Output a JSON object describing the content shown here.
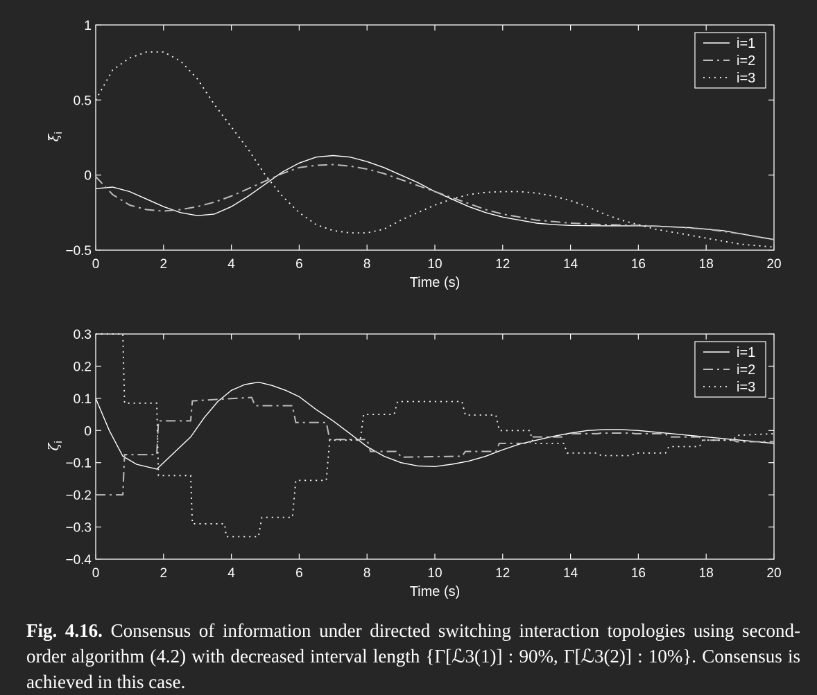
{
  "chart_data": [
    {
      "type": "line",
      "ylabel": "ξ_i",
      "ylabel_main": "ξ",
      "ylabel_sub": "i",
      "xlabel": "Time (s)",
      "xlim": [
        0,
        20
      ],
      "ylim": [
        -0.5,
        1
      ],
      "xticks": [
        "0",
        "2",
        "4",
        "6",
        "8",
        "10",
        "12",
        "14",
        "16",
        "18",
        "20"
      ],
      "yticks": [
        "−0.5",
        "0",
        "0.5",
        "1"
      ],
      "ytick_values": [
        -0.5,
        0,
        0.5,
        1
      ],
      "legend": "top-right",
      "series": [
        {
          "name": "i=1",
          "style": "solid",
          "x": [
            0,
            0.5,
            1,
            1.5,
            2,
            2.5,
            3,
            3.5,
            4,
            4.5,
            5,
            5.5,
            6,
            6.5,
            7,
            7.5,
            8,
            8.5,
            9,
            9.5,
            10,
            10.5,
            11,
            11.5,
            12,
            12.5,
            13,
            13.5,
            14,
            14.5,
            15,
            15.5,
            16,
            16.5,
            17,
            17.5,
            18,
            18.5,
            19,
            19.5,
            20
          ],
          "y": [
            -0.09,
            -0.08,
            -0.11,
            -0.16,
            -0.21,
            -0.25,
            -0.27,
            -0.26,
            -0.21,
            -0.14,
            -0.06,
            0.02,
            0.08,
            0.12,
            0.13,
            0.12,
            0.09,
            0.05,
            0.0,
            -0.05,
            -0.11,
            -0.16,
            -0.21,
            -0.25,
            -0.28,
            -0.3,
            -0.32,
            -0.33,
            -0.335,
            -0.337,
            -0.338,
            -0.338,
            -0.338,
            -0.34,
            -0.345,
            -0.35,
            -0.36,
            -0.37,
            -0.39,
            -0.41,
            -0.43
          ]
        },
        {
          "name": "i=2",
          "style": "dashdot",
          "x": [
            0,
            0.5,
            1,
            1.5,
            2,
            2.5,
            3,
            3.5,
            4,
            4.5,
            5,
            5.5,
            6,
            6.5,
            7,
            7.5,
            8,
            8.5,
            9,
            9.5,
            10,
            10.5,
            11,
            11.5,
            12,
            12.5,
            13,
            13.5,
            14,
            14.5,
            15,
            15.5,
            16,
            16.5,
            17,
            17.5,
            18,
            18.5,
            19,
            19.5,
            20
          ],
          "y": [
            -0.01,
            -0.13,
            -0.2,
            -0.23,
            -0.24,
            -0.23,
            -0.21,
            -0.18,
            -0.14,
            -0.09,
            -0.04,
            0.01,
            0.05,
            0.065,
            0.07,
            0.06,
            0.04,
            0.01,
            -0.03,
            -0.07,
            -0.11,
            -0.15,
            -0.19,
            -0.23,
            -0.26,
            -0.28,
            -0.3,
            -0.31,
            -0.32,
            -0.325,
            -0.33,
            -0.333,
            -0.335,
            -0.34,
            -0.345,
            -0.352,
            -0.36,
            -0.375,
            -0.39,
            -0.41,
            -0.43
          ]
        },
        {
          "name": "i=3",
          "style": "dotted",
          "x": [
            0,
            0.5,
            1,
            1.5,
            2,
            2.5,
            3,
            3.5,
            4,
            4.5,
            5,
            5.5,
            6,
            6.5,
            7,
            7.5,
            8,
            8.5,
            9,
            9.5,
            10,
            10.5,
            11,
            11.5,
            12,
            12.5,
            13,
            13.5,
            14,
            14.5,
            15,
            15.5,
            16,
            16.5,
            17,
            17.5,
            18,
            18.5,
            19,
            19.5,
            20
          ],
          "y": [
            0.5,
            0.7,
            0.78,
            0.82,
            0.82,
            0.76,
            0.64,
            0.47,
            0.32,
            0.17,
            0.0,
            -0.14,
            -0.25,
            -0.33,
            -0.37,
            -0.385,
            -0.385,
            -0.36,
            -0.3,
            -0.25,
            -0.2,
            -0.16,
            -0.13,
            -0.115,
            -0.11,
            -0.11,
            -0.12,
            -0.14,
            -0.17,
            -0.21,
            -0.26,
            -0.3,
            -0.33,
            -0.36,
            -0.38,
            -0.4,
            -0.42,
            -0.44,
            -0.46,
            -0.47,
            -0.48
          ]
        }
      ]
    },
    {
      "type": "line",
      "ylabel": "ζ_i",
      "ylabel_main": "ζ",
      "ylabel_sub": "i",
      "xlabel": "Time (s)",
      "xlim": [
        0,
        20
      ],
      "ylim": [
        -0.4,
        0.3
      ],
      "xticks": [
        "0",
        "2",
        "4",
        "6",
        "8",
        "10",
        "12",
        "14",
        "16",
        "18",
        "20"
      ],
      "yticks": [
        "−0.4",
        "−0.3",
        "−0.2",
        "−0.1",
        "0",
        "0.1",
        "0.2",
        "0.3"
      ],
      "ytick_values": [
        -0.4,
        -0.3,
        -0.2,
        -0.1,
        0,
        0.1,
        0.2,
        0.3
      ],
      "legend": "top-right",
      "series": [
        {
          "name": "i=1",
          "style": "solid",
          "x": [
            0,
            0.4,
            0.8,
            1.2,
            1.8,
            2.4,
            2.8,
            3.2,
            3.6,
            4,
            4.4,
            4.8,
            5.2,
            5.6,
            6,
            6.5,
            7,
            7.5,
            8,
            8.5,
            9,
            9.5,
            10,
            10.5,
            11,
            11.5,
            12,
            12.5,
            13,
            13.5,
            14,
            14.5,
            15,
            15.5,
            16,
            16.5,
            17,
            17.5,
            18,
            18.5,
            19,
            19.5,
            20
          ],
          "y": [
            0.1,
            0.0,
            -0.08,
            -0.105,
            -0.12,
            -0.06,
            -0.02,
            0.04,
            0.09,
            0.125,
            0.143,
            0.15,
            0.14,
            0.125,
            0.105,
            0.065,
            0.03,
            -0.01,
            -0.05,
            -0.08,
            -0.1,
            -0.11,
            -0.112,
            -0.105,
            -0.095,
            -0.08,
            -0.06,
            -0.042,
            -0.03,
            -0.018,
            -0.008,
            0.0,
            0.003,
            0.003,
            0.0,
            -0.005,
            -0.01,
            -0.015,
            -0.02,
            -0.025,
            -0.03,
            -0.035,
            -0.04
          ]
        },
        {
          "name": "i=2",
          "style": "dashdot",
          "x": [
            0,
            0.8,
            0.85,
            1.8,
            1.85,
            2.8,
            2.85,
            4.6,
            4.7,
            5.8,
            5.9,
            6.8,
            6.9,
            8,
            8.1,
            8.9,
            9,
            10.8,
            10.9,
            11.8,
            11.9,
            12.8,
            12.9,
            13.8,
            13.9,
            14.8,
            14.9,
            15.8,
            15.9,
            16.8,
            16.9,
            17.8,
            17.9,
            18.8,
            18.9,
            20
          ],
          "y": [
            -0.2,
            -0.2,
            -0.075,
            -0.075,
            0.03,
            0.03,
            0.092,
            0.103,
            0.077,
            0.077,
            0.025,
            0.025,
            -0.028,
            -0.028,
            -0.065,
            -0.065,
            -0.083,
            -0.08,
            -0.065,
            -0.065,
            -0.04,
            -0.04,
            -0.02,
            -0.02,
            -0.01,
            -0.01,
            -0.008,
            -0.008,
            -0.01,
            -0.01,
            -0.02,
            -0.02,
            -0.03,
            -0.03,
            -0.035,
            -0.035
          ]
        },
        {
          "name": "i=3",
          "style": "dotted",
          "x": [
            0,
            0.8,
            0.85,
            1.8,
            1.85,
            2.8,
            2.85,
            3.8,
            3.85,
            4.8,
            4.9,
            5.8,
            5.9,
            6.8,
            6.9,
            7.8,
            7.9,
            8.8,
            8.9,
            10.8,
            10.9,
            11.8,
            11.9,
            12.8,
            12.9,
            13.8,
            13.9,
            14.8,
            14.9,
            15.8,
            15.9,
            16.8,
            16.9,
            17.8,
            17.9,
            18.8,
            18.9,
            20
          ],
          "y": [
            0.3,
            0.3,
            0.085,
            0.085,
            -0.14,
            -0.14,
            -0.29,
            -0.29,
            -0.33,
            -0.33,
            -0.27,
            -0.27,
            -0.155,
            -0.155,
            -0.03,
            -0.03,
            0.05,
            0.05,
            0.09,
            0.09,
            0.048,
            0.048,
            0.0,
            0.0,
            -0.04,
            -0.04,
            -0.07,
            -0.07,
            -0.078,
            -0.078,
            -0.07,
            -0.07,
            -0.05,
            -0.05,
            -0.03,
            -0.03,
            -0.015,
            -0.01
          ]
        }
      ]
    }
  ],
  "caption": {
    "label": "Fig. 4.16.",
    "text": " Consensus of information under directed switching interaction topologies using second-order algorithm (4.2) with decreased interval length {Γ[ℒ3(1)] : 90%, Γ[ℒ3(2)] : 10%}. Consensus is achieved in this case."
  }
}
